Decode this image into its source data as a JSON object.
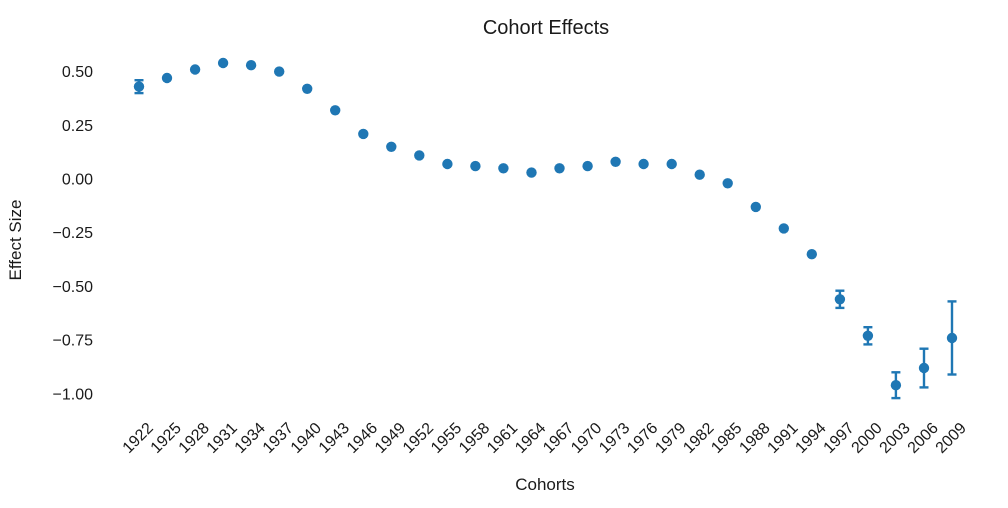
{
  "chart_data": {
    "type": "scatter",
    "title": "Cohort Effects",
    "xlabel": "Cohorts",
    "ylabel": "Effect Size",
    "categories": [
      "1922",
      "1925",
      "1928",
      "1931",
      "1934",
      "1937",
      "1940",
      "1943",
      "1946",
      "1949",
      "1952",
      "1955",
      "1958",
      "1961",
      "1964",
      "1967",
      "1970",
      "1973",
      "1976",
      "1979",
      "1982",
      "1985",
      "1988",
      "1991",
      "1994",
      "1997",
      "2000",
      "2003",
      "2006",
      "2009"
    ],
    "values": [
      0.43,
      0.47,
      0.51,
      0.54,
      0.53,
      0.5,
      0.42,
      0.32,
      0.21,
      0.15,
      0.11,
      0.07,
      0.06,
      0.05,
      0.03,
      0.05,
      0.06,
      0.08,
      0.07,
      0.07,
      0.02,
      -0.02,
      -0.13,
      -0.23,
      -0.35,
      -0.56,
      -0.73,
      -0.96,
      -0.88,
      -0.74
    ],
    "errors": [
      0.03,
      0,
      0,
      0,
      0,
      0,
      0,
      0,
      0,
      0,
      0,
      0,
      0,
      0,
      0,
      0,
      0,
      0,
      0,
      0,
      0,
      0,
      0,
      0,
      0,
      0.04,
      0.04,
      0.06,
      0.09,
      0.17
    ],
    "yticks": {
      "values": [
        0.5,
        0.25,
        0,
        -0.25,
        -0.5,
        -0.75,
        -1
      ],
      "labels": [
        "0.50",
        "0.25",
        "0.00",
        "−0.25",
        "−0.50",
        "−0.75",
        "−1.00"
      ]
    },
    "ylim": [
      -1.1,
      0.62
    ],
    "grid": false,
    "legend": false,
    "marker_color": "#1f77b4",
    "text_color": "#1a1a1a",
    "background_color": "#ffffff"
  }
}
